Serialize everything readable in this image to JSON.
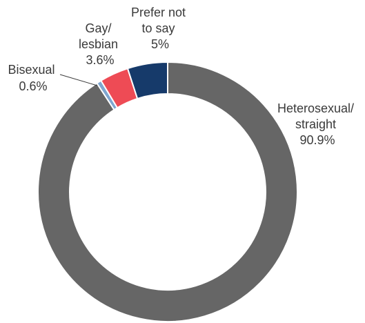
{
  "chart_data": {
    "type": "pie",
    "variant": "donut",
    "categories": [
      "Heterosexual/ straight",
      "Bisexual",
      "Gay/ lesbian",
      "Prefer not to say"
    ],
    "values": [
      90.9,
      0.6,
      3.6,
      5.0
    ],
    "colors": [
      "#666666",
      "#7fa6d0",
      "#ee4b55",
      "#163a6a"
    ],
    "slice_labels": [
      [
        "Heterosexual/",
        "straight",
        "90.9%"
      ],
      [
        "Bisexual",
        "0.6%"
      ],
      [
        "Gay/",
        "lesbian",
        "3.6%"
      ],
      [
        "Prefer not",
        "to say",
        "5%"
      ]
    ],
    "start_angle": "12 o'clock",
    "direction": "clockwise",
    "legend": "none"
  }
}
